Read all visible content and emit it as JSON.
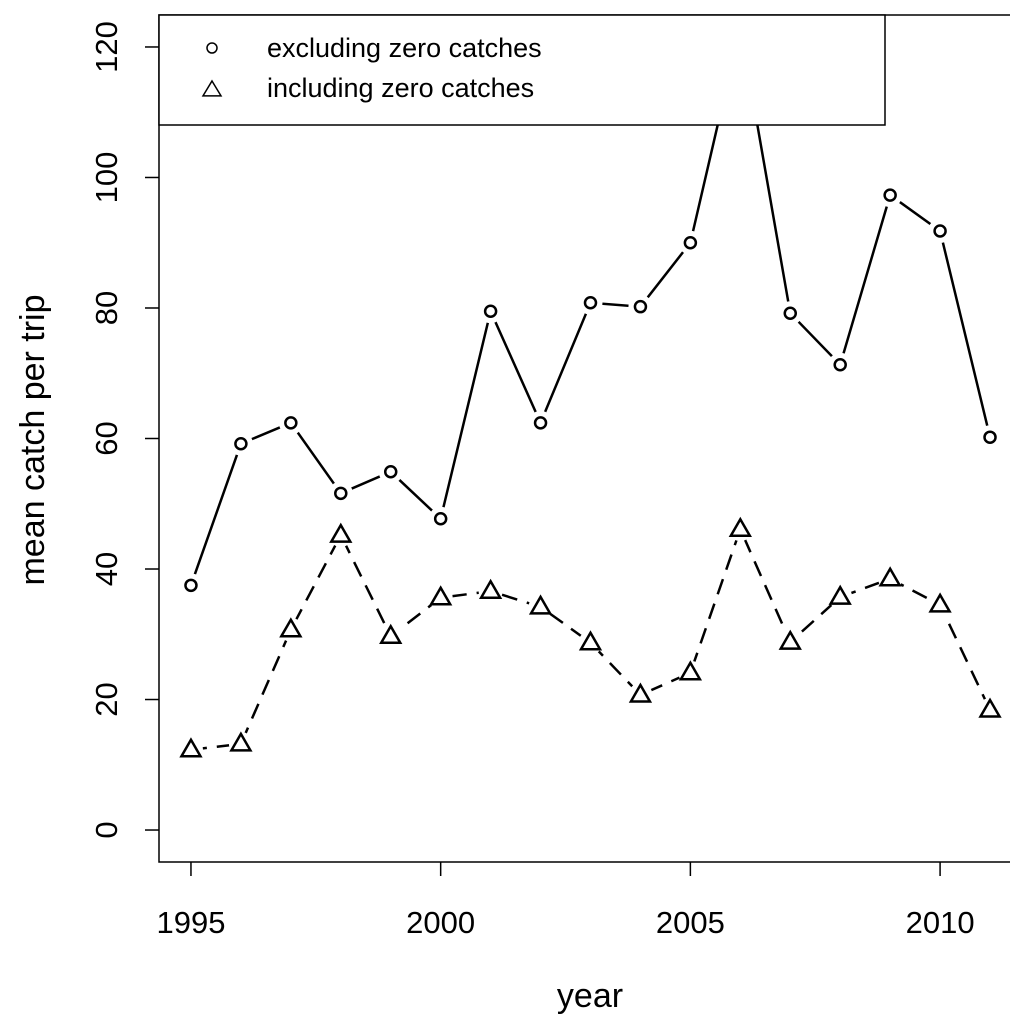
{
  "chart_data": {
    "type": "line",
    "xlabel": "year",
    "ylabel": "mean catch per trip",
    "x": [
      1995,
      1996,
      1997,
      1998,
      1999,
      2000,
      2001,
      2002,
      2003,
      2004,
      2005,
      2006,
      2007,
      2008,
      2009,
      2010,
      2011
    ],
    "series": [
      {
        "name": "excluding zero catches",
        "color": "#000000",
        "marker": "circle",
        "linestyle": "solid",
        "values": [
          37.5,
          59.2,
          62.4,
          51.6,
          54.9,
          47.7,
          79.5,
          62.4,
          80.8,
          80.2,
          90.0,
          123,
          79.2,
          71.3,
          97.3,
          91.8,
          60.2
        ]
      },
      {
        "name": "including zero catches",
        "color": "#000000",
        "marker": "triangle",
        "linestyle": "dashed",
        "values": [
          12.3,
          13.2,
          30.7,
          45.2,
          29.7,
          35.6,
          36.6,
          34.2,
          28.7,
          20.7,
          24.1,
          46.1,
          28.8,
          35.7,
          38.5,
          34.5,
          18.4
        ]
      }
    ],
    "xlim": [
      1994.36,
      2011.4
    ],
    "ylim": [
      -4.9,
      124.9
    ],
    "xticks": [
      1995,
      2000,
      2005,
      2010
    ],
    "yticks": [
      0,
      20,
      40,
      60,
      80,
      100,
      120
    ],
    "grid": false,
    "legend_position": "top-left"
  }
}
